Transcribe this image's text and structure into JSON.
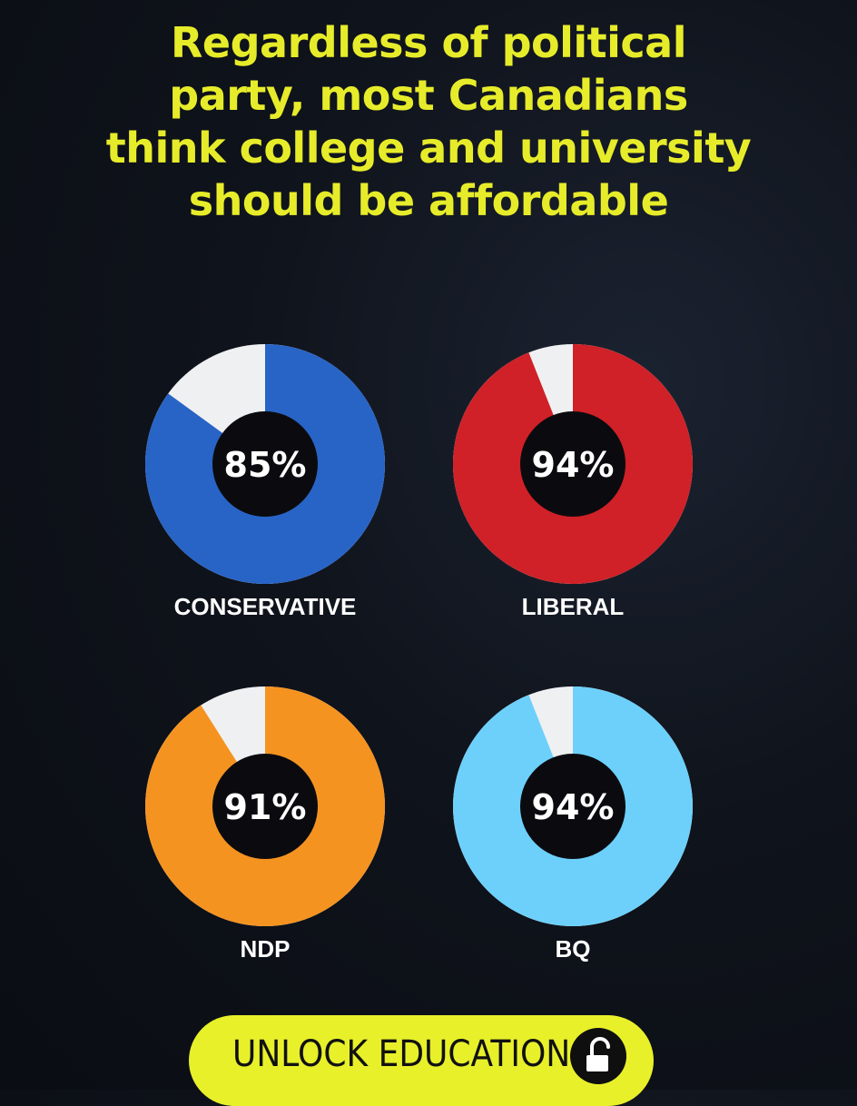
{
  "title": {
    "lines": [
      "Regardless of political",
      "party, most Canadians",
      "think college and university",
      "should be affordable"
    ]
  },
  "chart_data": {
    "type": "pie",
    "variant": "donut",
    "series": [
      {
        "name": "CONSERVATIVE",
        "value": 85,
        "label": "85%",
        "color": "#2864c6"
      },
      {
        "name": "LIBERAL",
        "value": 94,
        "label": "94%",
        "color": "#cf2127"
      },
      {
        "name": "NDP",
        "value": 91,
        "label": "91%",
        "color": "#f59321"
      },
      {
        "name": "BQ",
        "value": 94,
        "label": "94%",
        "color": "#6dd0fb"
      }
    ],
    "remainder_color": "#eff0f2",
    "center_color": "#0b0b0f"
  },
  "cta": {
    "label": "UNLOCK EDUCATION",
    "icon": "unlocked-padlock-icon",
    "background": "#e8f02a"
  },
  "colors": {
    "background": "#0f131b",
    "title": "#e7ec2a",
    "text": "#ffffff"
  }
}
